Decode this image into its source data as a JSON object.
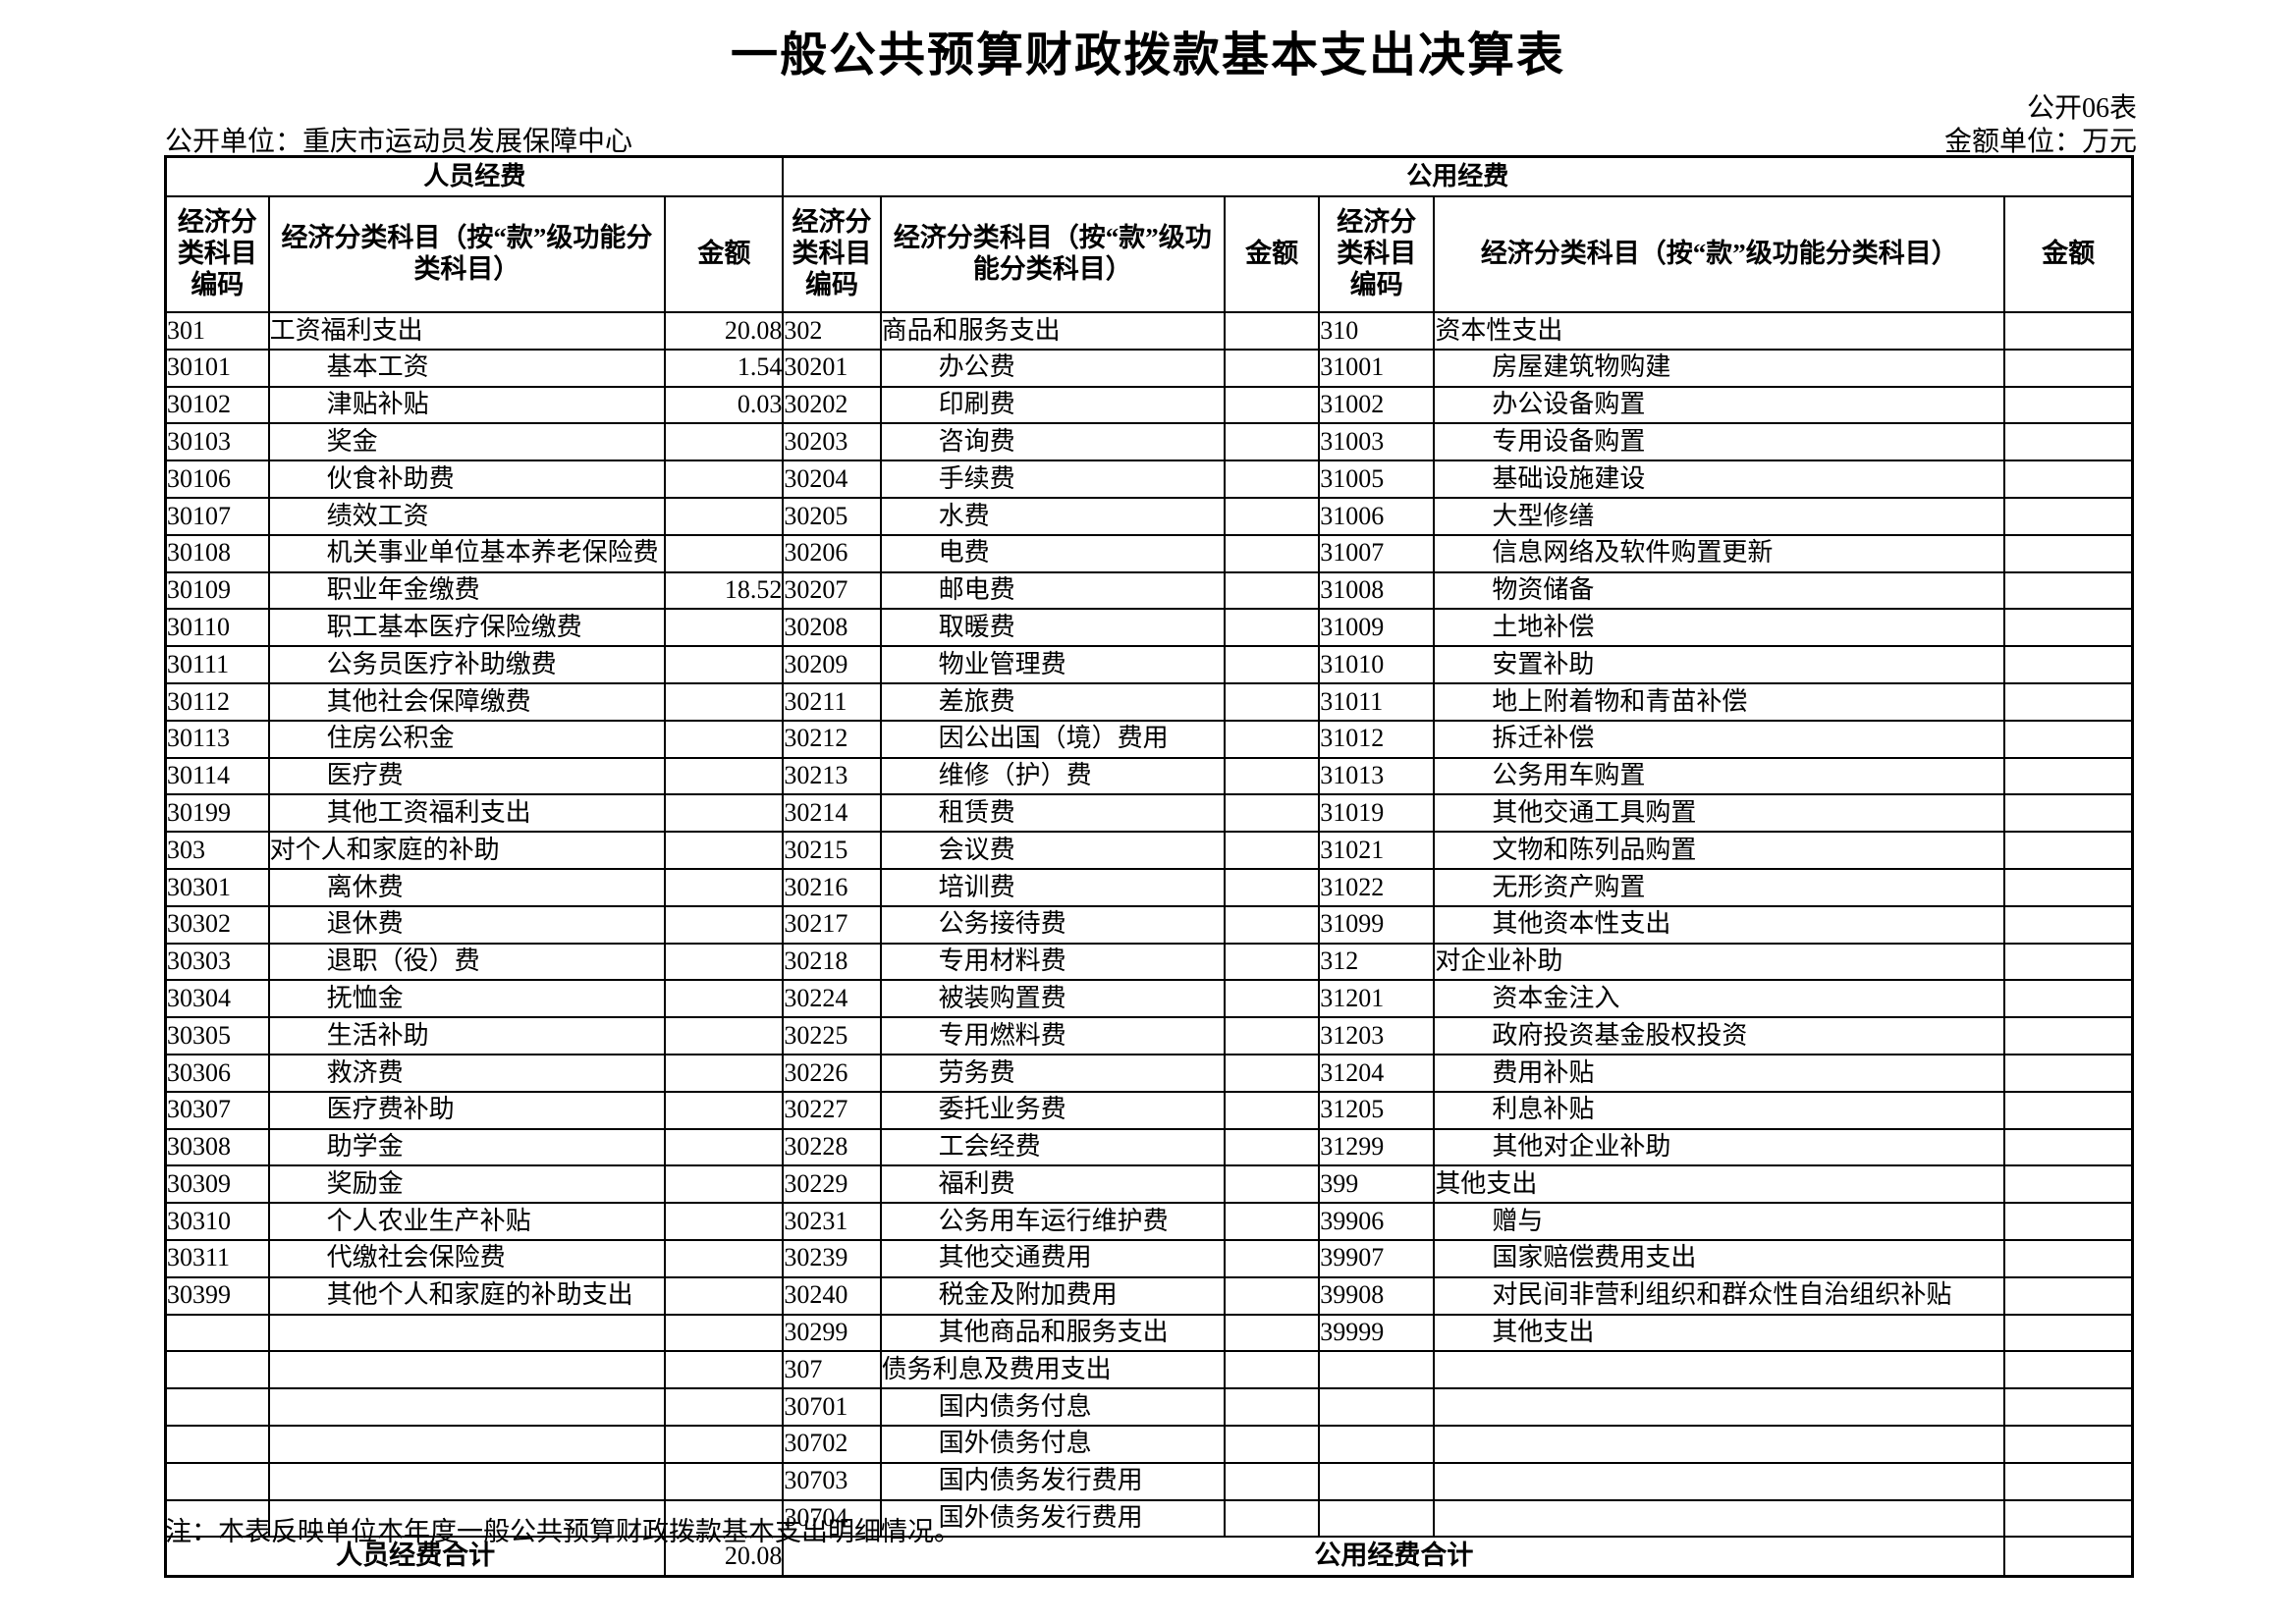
{
  "page": {
    "title": "一般公共预算财政拨款基本支出决算表",
    "table_no": "公开06表",
    "publisher": "公开单位：重庆市运动员发展保障中心",
    "amount_unit": "金额单位：万元",
    "note": "注：本表反映单位本年度一般公共预算财政拨款基本支出明细情况。"
  },
  "table": {
    "groups": [
      {
        "label": "人员经费"
      },
      {
        "label": "公用经费"
      }
    ],
    "column_headers": {
      "code": "经济分类科目编码",
      "name": "经济分类科目（按“款”级功能分类科目）",
      "amount": "金额"
    },
    "row_count": 33,
    "sections": [
      {
        "rows": [
          [
            "301",
            "工资福利支出",
            "20.08",
            0
          ],
          [
            "30101",
            "基本工资",
            "1.54",
            1
          ],
          [
            "30102",
            "津贴补贴",
            "0.03",
            1
          ],
          [
            "30103",
            "奖金",
            "",
            1
          ],
          [
            "30106",
            "伙食补助费",
            "",
            1
          ],
          [
            "30107",
            "绩效工资",
            "",
            1
          ],
          [
            "30108",
            "机关事业单位基本养老保险费",
            "",
            1
          ],
          [
            "30109",
            "职业年金缴费",
            "18.52",
            1
          ],
          [
            "30110",
            "职工基本医疗保险缴费",
            "",
            1
          ],
          [
            "30111",
            "公务员医疗补助缴费",
            "",
            1
          ],
          [
            "30112",
            "其他社会保障缴费",
            "",
            1
          ],
          [
            "30113",
            "住房公积金",
            "",
            1
          ],
          [
            "30114",
            "医疗费",
            "",
            1
          ],
          [
            "30199",
            "其他工资福利支出",
            "",
            1
          ],
          [
            "303",
            "对个人和家庭的补助",
            "",
            0
          ],
          [
            "30301",
            "离休费",
            "",
            1
          ],
          [
            "30302",
            "退休费",
            "",
            1
          ],
          [
            "30303",
            "退职（役）费",
            "",
            1
          ],
          [
            "30304",
            "抚恤金",
            "",
            1
          ],
          [
            "30305",
            "生活补助",
            "",
            1
          ],
          [
            "30306",
            "救济费",
            "",
            1
          ],
          [
            "30307",
            "医疗费补助",
            "",
            1
          ],
          [
            "30308",
            "助学金",
            "",
            1
          ],
          [
            "30309",
            "奖励金",
            "",
            1
          ],
          [
            "30310",
            "个人农业生产补贴",
            "",
            1
          ],
          [
            "30311",
            "代缴社会保险费",
            "",
            1
          ],
          [
            "30399",
            "其他个人和家庭的补助支出",
            "",
            1
          ]
        ]
      },
      {
        "rows": [
          [
            "302",
            "商品和服务支出",
            "",
            0
          ],
          [
            "30201",
            "办公费",
            "",
            1
          ],
          [
            "30202",
            "印刷费",
            "",
            1
          ],
          [
            "30203",
            "咨询费",
            "",
            1
          ],
          [
            "30204",
            "手续费",
            "",
            1
          ],
          [
            "30205",
            "水费",
            "",
            1
          ],
          [
            "30206",
            "电费",
            "",
            1
          ],
          [
            "30207",
            "邮电费",
            "",
            1
          ],
          [
            "30208",
            "取暖费",
            "",
            1
          ],
          [
            "30209",
            "物业管理费",
            "",
            1
          ],
          [
            "30211",
            "差旅费",
            "",
            1
          ],
          [
            "30212",
            "因公出国（境）费用",
            "",
            1
          ],
          [
            "30213",
            "维修（护）费",
            "",
            1
          ],
          [
            "30214",
            "租赁费",
            "",
            1
          ],
          [
            "30215",
            "会议费",
            "",
            1
          ],
          [
            "30216",
            "培训费",
            "",
            1
          ],
          [
            "30217",
            "公务接待费",
            "",
            1
          ],
          [
            "30218",
            "专用材料费",
            "",
            1
          ],
          [
            "30224",
            "被装购置费",
            "",
            1
          ],
          [
            "30225",
            "专用燃料费",
            "",
            1
          ],
          [
            "30226",
            "劳务费",
            "",
            1
          ],
          [
            "30227",
            "委托业务费",
            "",
            1
          ],
          [
            "30228",
            "工会经费",
            "",
            1
          ],
          [
            "30229",
            "福利费",
            "",
            1
          ],
          [
            "30231",
            "公务用车运行维护费",
            "",
            1
          ],
          [
            "30239",
            "其他交通费用",
            "",
            1
          ],
          [
            "30240",
            "税金及附加费用",
            "",
            1
          ],
          [
            "30299",
            "其他商品和服务支出",
            "",
            1
          ],
          [
            "307",
            "债务利息及费用支出",
            "",
            0
          ],
          [
            "30701",
            "国内债务付息",
            "",
            1
          ],
          [
            "30702",
            "国外债务付息",
            "",
            1
          ],
          [
            "30703",
            "国内债务发行费用",
            "",
            1
          ],
          [
            "30704",
            "国外债务发行费用",
            "",
            1
          ]
        ]
      },
      {
        "rows": [
          [
            "310",
            "资本性支出",
            "",
            0
          ],
          [
            "31001",
            "房屋建筑物购建",
            "",
            1
          ],
          [
            "31002",
            "办公设备购置",
            "",
            1
          ],
          [
            "31003",
            "专用设备购置",
            "",
            1
          ],
          [
            "31005",
            "基础设施建设",
            "",
            1
          ],
          [
            "31006",
            "大型修缮",
            "",
            1
          ],
          [
            "31007",
            "信息网络及软件购置更新",
            "",
            1
          ],
          [
            "31008",
            "物资储备",
            "",
            1
          ],
          [
            "31009",
            "土地补偿",
            "",
            1
          ],
          [
            "31010",
            "安置补助",
            "",
            1
          ],
          [
            "31011",
            "地上附着物和青苗补偿",
            "",
            1
          ],
          [
            "31012",
            "拆迁补偿",
            "",
            1
          ],
          [
            "31013",
            "公务用车购置",
            "",
            1
          ],
          [
            "31019",
            "其他交通工具购置",
            "",
            1
          ],
          [
            "31021",
            "文物和陈列品购置",
            "",
            1
          ],
          [
            "31022",
            "无形资产购置",
            "",
            1
          ],
          [
            "31099",
            "其他资本性支出",
            "",
            1
          ],
          [
            "312",
            "对企业补助",
            "",
            0
          ],
          [
            "31201",
            "资本金注入",
            "",
            1
          ],
          [
            "31203",
            "政府投资基金股权投资",
            "",
            1
          ],
          [
            "31204",
            "费用补贴",
            "",
            1
          ],
          [
            "31205",
            "利息补贴",
            "",
            1
          ],
          [
            "31299",
            "其他对企业补助",
            "",
            1
          ],
          [
            "399",
            "其他支出",
            "",
            0
          ],
          [
            "39906",
            "赠与",
            "",
            1
          ],
          [
            "39907",
            "国家赔偿费用支出",
            "",
            1
          ],
          [
            "39908",
            "对民间非营利组织和群众性自治组织补贴",
            "",
            1
          ],
          [
            "39999",
            "其他支出",
            "",
            1
          ]
        ]
      }
    ],
    "footer": {
      "personnel_total_label": "人员经费合计",
      "personnel_total_amount": "20.08",
      "public_total_label": "公用经费合计",
      "public_total_amount": ""
    }
  }
}
